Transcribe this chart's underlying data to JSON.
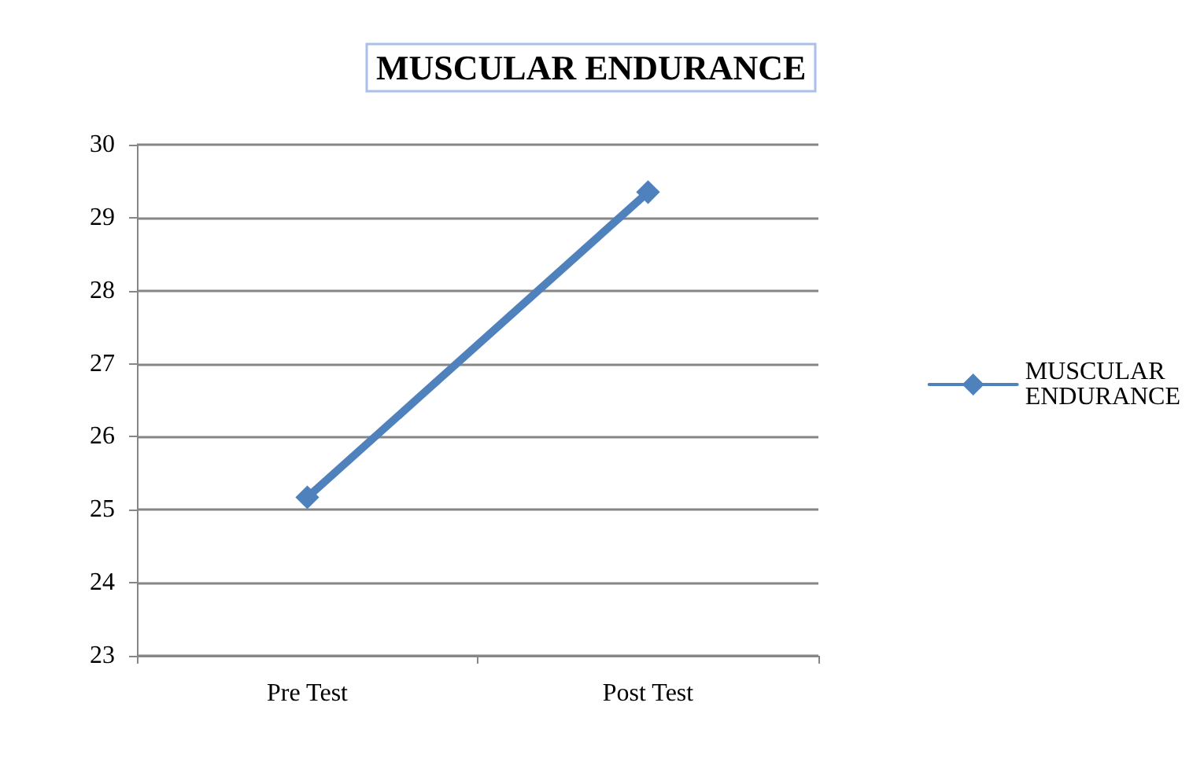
{
  "chart_data": {
    "type": "line",
    "title": "MUSCULAR ENDURANCE",
    "categories": [
      "Pre Test",
      "Post Test"
    ],
    "series": [
      {
        "name": "MUSCULAR ENDURANCE",
        "color": "#4f81bd",
        "values": [
          25.17,
          29.35
        ]
      }
    ],
    "ylim": [
      23,
      30
    ],
    "yticks": [
      23,
      24,
      25,
      26,
      27,
      28,
      29,
      30
    ],
    "grid": "y",
    "legend": "right",
    "marker": "diamond",
    "line_style": "solid"
  }
}
